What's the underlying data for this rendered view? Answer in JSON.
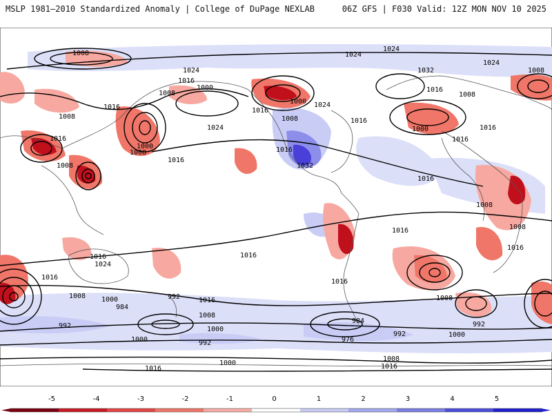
{
  "header": {
    "left": "MSLP 1981–2010 Standardized Anomaly | College of DuPage NEXLAB",
    "right": "06Z GFS | F030 Valid: 12Z MON NOV 10 2025"
  },
  "map": {
    "variable": "Mean Sea Level Pressure standardized anomaly",
    "isobar_labels": [
      "1008",
      "1024",
      "1024",
      "1024",
      "1008",
      "1024",
      "1016",
      "1000",
      "1008",
      "1016",
      "1000",
      "1024",
      "1016",
      "1008",
      "1032",
      "1016",
      "1008",
      "1016",
      "1016",
      "1016",
      "1000",
      "1024",
      "1016",
      "1000",
      "1008",
      "1008",
      "1016",
      "1008",
      "1016",
      "1032",
      "1016",
      "1016",
      "1008",
      "1008",
      "1016",
      "1016",
      "1024",
      "1016",
      "1016",
      "1016",
      "1008",
      "1000",
      "992",
      "984",
      "1016",
      "1008",
      "1000",
      "992",
      "1000",
      "984",
      "992",
      "976",
      "992",
      "1000",
      "1008",
      "992",
      "1000",
      "1008",
      "1016",
      "1016"
    ],
    "colors": {
      "strong_neg": "#c0101c",
      "mid_neg": "#e84b4b",
      "weak_neg": "#f7a8a0",
      "weak_pos": "#c9cdf6",
      "mid_pos": "#8c8eea",
      "strong_pos": "#4a3fd8",
      "coast": "#555555",
      "isobar": "#000000"
    }
  },
  "colorbar": {
    "ticks": [
      "-5",
      "-4",
      "-3",
      "-2",
      "-1",
      "0",
      "1",
      "2",
      "3",
      "4",
      "5"
    ],
    "colors": [
      "#7a0010",
      "#c81a22",
      "#e34545",
      "#ef7668",
      "#f7ada4",
      "#ffffff",
      "#c9cdf6",
      "#a3a8f0",
      "#7a7ee6",
      "#4b4ddc",
      "#1f1fd0"
    ]
  }
}
